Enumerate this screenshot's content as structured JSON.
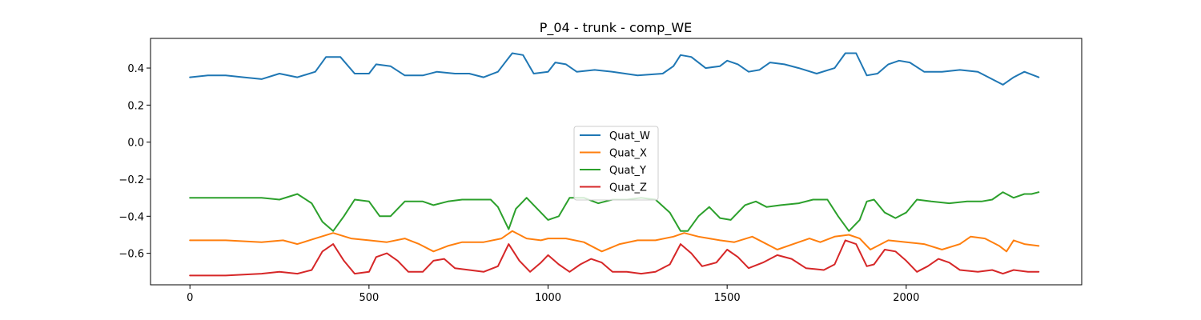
{
  "chart_data": {
    "type": "line",
    "title": "P_04 - trunk - comp_WE",
    "xlabel": "",
    "ylabel": "",
    "xlim": [
      -110,
      2490
    ],
    "ylim": [
      -0.77,
      0.56
    ],
    "x_ticks": [
      0,
      500,
      1000,
      1500,
      2000
    ],
    "x_tick_labels": [
      "0",
      "500",
      "1000",
      "1500",
      "2000"
    ],
    "y_ticks": [
      0.4,
      0.2,
      0.0,
      -0.2,
      -0.4,
      -0.6
    ],
    "y_tick_labels": [
      "0.4",
      "0.2",
      "0.0",
      "−0.2",
      "−0.4",
      "−0.6"
    ],
    "grid": false,
    "legend_position": "center",
    "series": [
      {
        "name": "Quat_W",
        "color": "#1f77b4",
        "points": [
          [
            0,
            0.35
          ],
          [
            50,
            0.36
          ],
          [
            100,
            0.36
          ],
          [
            150,
            0.35
          ],
          [
            200,
            0.34
          ],
          [
            250,
            0.37
          ],
          [
            300,
            0.35
          ],
          [
            350,
            0.38
          ],
          [
            380,
            0.46
          ],
          [
            420,
            0.46
          ],
          [
            460,
            0.37
          ],
          [
            500,
            0.37
          ],
          [
            520,
            0.42
          ],
          [
            560,
            0.41
          ],
          [
            600,
            0.36
          ],
          [
            650,
            0.36
          ],
          [
            690,
            0.38
          ],
          [
            740,
            0.37
          ],
          [
            780,
            0.37
          ],
          [
            820,
            0.35
          ],
          [
            860,
            0.38
          ],
          [
            900,
            0.48
          ],
          [
            930,
            0.47
          ],
          [
            960,
            0.37
          ],
          [
            1000,
            0.38
          ],
          [
            1020,
            0.43
          ],
          [
            1050,
            0.42
          ],
          [
            1080,
            0.38
          ],
          [
            1130,
            0.39
          ],
          [
            1180,
            0.38
          ],
          [
            1250,
            0.36
          ],
          [
            1320,
            0.37
          ],
          [
            1350,
            0.41
          ],
          [
            1370,
            0.47
          ],
          [
            1400,
            0.46
          ],
          [
            1440,
            0.4
          ],
          [
            1480,
            0.41
          ],
          [
            1500,
            0.44
          ],
          [
            1530,
            0.42
          ],
          [
            1560,
            0.38
          ],
          [
            1590,
            0.39
          ],
          [
            1620,
            0.43
          ],
          [
            1660,
            0.42
          ],
          [
            1700,
            0.4
          ],
          [
            1750,
            0.37
          ],
          [
            1800,
            0.4
          ],
          [
            1830,
            0.48
          ],
          [
            1860,
            0.48
          ],
          [
            1890,
            0.36
          ],
          [
            1920,
            0.37
          ],
          [
            1950,
            0.42
          ],
          [
            1980,
            0.44
          ],
          [
            2010,
            0.43
          ],
          [
            2050,
            0.38
          ],
          [
            2100,
            0.38
          ],
          [
            2150,
            0.39
          ],
          [
            2200,
            0.38
          ],
          [
            2250,
            0.33
          ],
          [
            2270,
            0.31
          ],
          [
            2300,
            0.35
          ],
          [
            2330,
            0.38
          ],
          [
            2370,
            0.35
          ]
        ]
      },
      {
        "name": "Quat_X",
        "color": "#ff7f0e",
        "points": [
          [
            0,
            -0.53
          ],
          [
            100,
            -0.53
          ],
          [
            200,
            -0.54
          ],
          [
            260,
            -0.53
          ],
          [
            300,
            -0.55
          ],
          [
            350,
            -0.52
          ],
          [
            400,
            -0.49
          ],
          [
            450,
            -0.52
          ],
          [
            500,
            -0.53
          ],
          [
            550,
            -0.54
          ],
          [
            600,
            -0.52
          ],
          [
            640,
            -0.55
          ],
          [
            680,
            -0.59
          ],
          [
            720,
            -0.56
          ],
          [
            760,
            -0.54
          ],
          [
            820,
            -0.54
          ],
          [
            870,
            -0.52
          ],
          [
            900,
            -0.48
          ],
          [
            940,
            -0.52
          ],
          [
            980,
            -0.53
          ],
          [
            1000,
            -0.52
          ],
          [
            1050,
            -0.52
          ],
          [
            1100,
            -0.54
          ],
          [
            1150,
            -0.59
          ],
          [
            1200,
            -0.55
          ],
          [
            1250,
            -0.53
          ],
          [
            1300,
            -0.53
          ],
          [
            1350,
            -0.51
          ],
          [
            1380,
            -0.49
          ],
          [
            1420,
            -0.51
          ],
          [
            1480,
            -0.53
          ],
          [
            1520,
            -0.54
          ],
          [
            1570,
            -0.51
          ],
          [
            1600,
            -0.54
          ],
          [
            1640,
            -0.58
          ],
          [
            1700,
            -0.54
          ],
          [
            1730,
            -0.52
          ],
          [
            1760,
            -0.54
          ],
          [
            1800,
            -0.51
          ],
          [
            1840,
            -0.5
          ],
          [
            1870,
            -0.52
          ],
          [
            1900,
            -0.58
          ],
          [
            1950,
            -0.53
          ],
          [
            2000,
            -0.54
          ],
          [
            2050,
            -0.55
          ],
          [
            2100,
            -0.58
          ],
          [
            2150,
            -0.55
          ],
          [
            2180,
            -0.51
          ],
          [
            2220,
            -0.52
          ],
          [
            2260,
            -0.56
          ],
          [
            2280,
            -0.59
          ],
          [
            2300,
            -0.53
          ],
          [
            2330,
            -0.55
          ],
          [
            2370,
            -0.56
          ]
        ]
      },
      {
        "name": "Quat_Y",
        "color": "#2ca02c",
        "points": [
          [
            0,
            -0.3
          ],
          [
            50,
            -0.3
          ],
          [
            100,
            -0.3
          ],
          [
            150,
            -0.3
          ],
          [
            200,
            -0.3
          ],
          [
            250,
            -0.31
          ],
          [
            300,
            -0.28
          ],
          [
            340,
            -0.33
          ],
          [
            370,
            -0.43
          ],
          [
            400,
            -0.48
          ],
          [
            430,
            -0.4
          ],
          [
            460,
            -0.31
          ],
          [
            500,
            -0.32
          ],
          [
            530,
            -0.4
          ],
          [
            560,
            -0.4
          ],
          [
            600,
            -0.32
          ],
          [
            650,
            -0.32
          ],
          [
            680,
            -0.34
          ],
          [
            720,
            -0.32
          ],
          [
            760,
            -0.31
          ],
          [
            800,
            -0.31
          ],
          [
            840,
            -0.31
          ],
          [
            860,
            -0.35
          ],
          [
            890,
            -0.47
          ],
          [
            910,
            -0.36
          ],
          [
            940,
            -0.3
          ],
          [
            970,
            -0.36
          ],
          [
            1000,
            -0.42
          ],
          [
            1030,
            -0.4
          ],
          [
            1060,
            -0.3
          ],
          [
            1100,
            -0.3
          ],
          [
            1140,
            -0.33
          ],
          [
            1180,
            -0.31
          ],
          [
            1220,
            -0.31
          ],
          [
            1260,
            -0.3
          ],
          [
            1300,
            -0.31
          ],
          [
            1340,
            -0.38
          ],
          [
            1370,
            -0.48
          ],
          [
            1390,
            -0.48
          ],
          [
            1420,
            -0.4
          ],
          [
            1450,
            -0.35
          ],
          [
            1480,
            -0.41
          ],
          [
            1510,
            -0.42
          ],
          [
            1550,
            -0.34
          ],
          [
            1580,
            -0.32
          ],
          [
            1610,
            -0.35
          ],
          [
            1650,
            -0.34
          ],
          [
            1700,
            -0.33
          ],
          [
            1740,
            -0.31
          ],
          [
            1780,
            -0.31
          ],
          [
            1810,
            -0.4
          ],
          [
            1840,
            -0.48
          ],
          [
            1870,
            -0.42
          ],
          [
            1890,
            -0.32
          ],
          [
            1910,
            -0.31
          ],
          [
            1940,
            -0.38
          ],
          [
            1970,
            -0.41
          ],
          [
            2000,
            -0.38
          ],
          [
            2030,
            -0.31
          ],
          [
            2070,
            -0.32
          ],
          [
            2120,
            -0.33
          ],
          [
            2170,
            -0.32
          ],
          [
            2210,
            -0.32
          ],
          [
            2240,
            -0.31
          ],
          [
            2270,
            -0.27
          ],
          [
            2300,
            -0.3
          ],
          [
            2330,
            -0.28
          ],
          [
            2350,
            -0.28
          ],
          [
            2370,
            -0.27
          ]
        ]
      },
      {
        "name": "Quat_Z",
        "color": "#d62728",
        "points": [
          [
            0,
            -0.72
          ],
          [
            100,
            -0.72
          ],
          [
            200,
            -0.71
          ],
          [
            250,
            -0.7
          ],
          [
            300,
            -0.71
          ],
          [
            340,
            -0.69
          ],
          [
            370,
            -0.59
          ],
          [
            400,
            -0.55
          ],
          [
            430,
            -0.64
          ],
          [
            460,
            -0.71
          ],
          [
            500,
            -0.7
          ],
          [
            520,
            -0.62
          ],
          [
            550,
            -0.6
          ],
          [
            580,
            -0.64
          ],
          [
            610,
            -0.7
          ],
          [
            650,
            -0.7
          ],
          [
            680,
            -0.64
          ],
          [
            710,
            -0.63
          ],
          [
            740,
            -0.68
          ],
          [
            780,
            -0.69
          ],
          [
            820,
            -0.7
          ],
          [
            860,
            -0.67
          ],
          [
            890,
            -0.55
          ],
          [
            920,
            -0.64
          ],
          [
            950,
            -0.7
          ],
          [
            980,
            -0.65
          ],
          [
            1000,
            -0.61
          ],
          [
            1030,
            -0.66
          ],
          [
            1060,
            -0.7
          ],
          [
            1090,
            -0.66
          ],
          [
            1120,
            -0.63
          ],
          [
            1150,
            -0.65
          ],
          [
            1180,
            -0.7
          ],
          [
            1220,
            -0.7
          ],
          [
            1260,
            -0.71
          ],
          [
            1300,
            -0.7
          ],
          [
            1340,
            -0.66
          ],
          [
            1370,
            -0.55
          ],
          [
            1400,
            -0.6
          ],
          [
            1430,
            -0.67
          ],
          [
            1470,
            -0.65
          ],
          [
            1500,
            -0.58
          ],
          [
            1530,
            -0.62
          ],
          [
            1560,
            -0.68
          ],
          [
            1600,
            -0.65
          ],
          [
            1640,
            -0.61
          ],
          [
            1680,
            -0.63
          ],
          [
            1720,
            -0.68
          ],
          [
            1770,
            -0.69
          ],
          [
            1800,
            -0.66
          ],
          [
            1830,
            -0.53
          ],
          [
            1860,
            -0.55
          ],
          [
            1890,
            -0.67
          ],
          [
            1910,
            -0.66
          ],
          [
            1940,
            -0.58
          ],
          [
            1970,
            -0.59
          ],
          [
            2000,
            -0.64
          ],
          [
            2030,
            -0.7
          ],
          [
            2060,
            -0.67
          ],
          [
            2090,
            -0.63
          ],
          [
            2120,
            -0.65
          ],
          [
            2150,
            -0.69
          ],
          [
            2200,
            -0.7
          ],
          [
            2240,
            -0.69
          ],
          [
            2270,
            -0.71
          ],
          [
            2300,
            -0.69
          ],
          [
            2340,
            -0.7
          ],
          [
            2370,
            -0.7
          ]
        ]
      }
    ]
  }
}
